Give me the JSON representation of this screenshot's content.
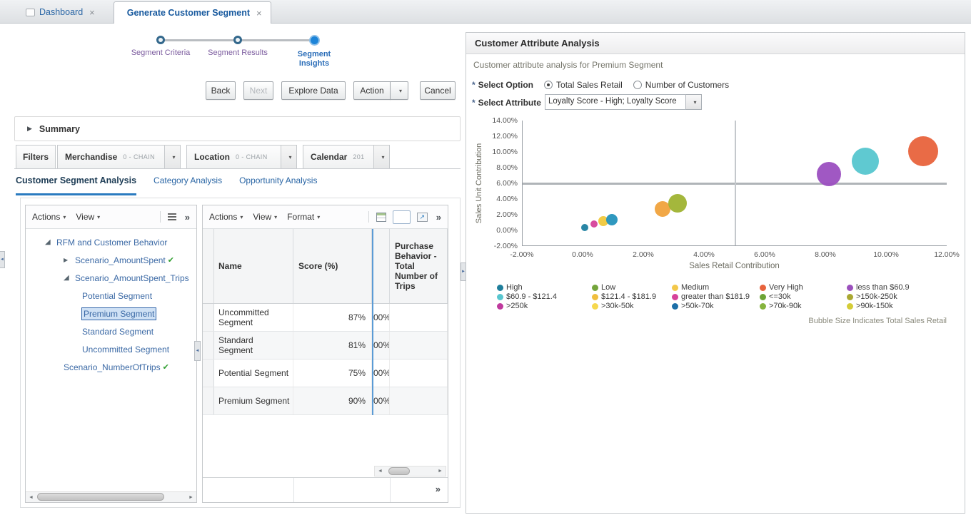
{
  "tabs": [
    {
      "label": "Dashboard",
      "active": false
    },
    {
      "label": "Generate Customer Segment",
      "active": true
    }
  ],
  "train": {
    "steps": [
      {
        "label": "Segment Criteria",
        "state": "visited"
      },
      {
        "label": "Segment Results",
        "state": "visited"
      },
      {
        "label": "Segment Insights",
        "state": "current"
      }
    ]
  },
  "buttons": {
    "back": "Back",
    "next": "Next",
    "explore": "Explore Data",
    "action": "Action",
    "cancel": "Cancel"
  },
  "summary": {
    "title": "Summary"
  },
  "filters": {
    "title": "Filters",
    "groups": [
      {
        "name": "Merchandise",
        "value": "0 - CHAIN"
      },
      {
        "name": "Location",
        "value": "0 - CHAIN"
      },
      {
        "name": "Calendar",
        "value": "201"
      }
    ]
  },
  "analysis_tabs": [
    {
      "label": "Customer Segment Analysis",
      "active": true
    },
    {
      "label": "Category Analysis",
      "active": false
    },
    {
      "label": "Opportunity Analysis",
      "active": false
    }
  ],
  "tree_panel": {
    "menus": [
      "Actions",
      "View"
    ],
    "overflow": "»",
    "items": [
      {
        "label": "RFM and Customer Behavior",
        "level": 0,
        "state": "expanded"
      },
      {
        "label": "Scenario_AmountSpent",
        "level": 1,
        "state": "collapsed",
        "check": true
      },
      {
        "label": "Scenario_AmountSpent_Trips",
        "level": 1,
        "state": "expanded"
      },
      {
        "label": "Potential Segment",
        "level": 2
      },
      {
        "label": "Premium Segment",
        "level": 2,
        "selected": true
      },
      {
        "label": "Standard Segment",
        "level": 2
      },
      {
        "label": "Uncommitted Segment",
        "level": 2
      },
      {
        "label": "Scenario_NumberOfTrips",
        "level": 1,
        "check": true
      }
    ]
  },
  "table_panel": {
    "menus": [
      "Actions",
      "View",
      "Format"
    ],
    "overflow": "»",
    "columns": [
      "Name",
      "Score (%)",
      "",
      "Purchase Behavior - Total Number of Trips"
    ],
    "rows": [
      {
        "name": "Uncommitted Segment",
        "score": "87%",
        "clipped": "00%"
      },
      {
        "name": "Standard Segment",
        "score": "81%",
        "clipped": "00%"
      },
      {
        "name": "Potential Segment",
        "score": "75%",
        "clipped": "00%"
      },
      {
        "name": "Premium Segment",
        "score": "90%",
        "clipped": "00%"
      }
    ]
  },
  "attribute_panel": {
    "title": "Customer Attribute Analysis",
    "subtitle": "Customer attribute analysis for Premium Segment",
    "select_option": {
      "label": "Select Option",
      "required": true,
      "options": [
        {
          "label": "Total Sales Retail",
          "selected": true
        },
        {
          "label": "Number of Customers",
          "selected": false
        }
      ]
    },
    "select_attribute": {
      "label": "Select Attribute",
      "required": true,
      "value": "Loyalty Score - High; Loyalty Score"
    }
  },
  "chart_data": {
    "type": "bubble",
    "xlabel": "Sales Retail Contribution",
    "ylabel": "Sales Unit Contribution",
    "xlim": [
      -2,
      12
    ],
    "ylim": [
      -2,
      14
    ],
    "x_ticks": [
      -2,
      0,
      2,
      4,
      6,
      8,
      10,
      12
    ],
    "y_ticks": [
      14,
      12,
      10,
      8,
      6,
      4,
      2,
      0,
      -2
    ],
    "tick_format": "0.00%",
    "grid": false,
    "reference_lines": {
      "x": 5,
      "y": 6
    },
    "points": [
      {
        "x": 0.05,
        "y": 0.4,
        "r": 5,
        "color": "#1e7fa0"
      },
      {
        "x": 0.35,
        "y": 0.8,
        "r": 5,
        "color": "#d6429a"
      },
      {
        "x": 0.65,
        "y": 1.2,
        "r": 7,
        "color": "#f0c83c"
      },
      {
        "x": 0.95,
        "y": 1.4,
        "r": 8,
        "color": "#2492bc"
      },
      {
        "x": 2.6,
        "y": 2.7,
        "r": 11,
        "color": "#f0a23c"
      },
      {
        "x": 3.1,
        "y": 3.5,
        "r": 13,
        "color": "#9fb332"
      },
      {
        "x": 8.1,
        "y": 7.2,
        "r": 17,
        "color": "#9b4fc0"
      },
      {
        "x": 9.3,
        "y": 8.8,
        "r": 19,
        "color": "#56c6cf"
      },
      {
        "x": 11.2,
        "y": 10.1,
        "r": 21,
        "color": "#e8633c"
      }
    ],
    "legend": [
      {
        "label": "High",
        "color": "#1f7e9b"
      },
      {
        "label": "Low",
        "color": "#74a53c"
      },
      {
        "label": "Medium",
        "color": "#f3c84a"
      },
      {
        "label": "Very High",
        "color": "#e8633c"
      },
      {
        "label": "less than $60.9",
        "color": "#9b50bd"
      },
      {
        "label": "$60.9 - $121.4",
        "color": "#59c6cf"
      },
      {
        "label": "$121.4 - $181.9",
        "color": "#f0be3e"
      },
      {
        "label": "greater than $181.9",
        "color": "#d6429a"
      },
      {
        "label": "<=30k",
        "color": "#6da436"
      },
      {
        "label": ">150k-250k",
        "color": "#aaa832"
      },
      {
        "label": ">250k",
        "color": "#bf3a9e"
      },
      {
        "label": ">30k-50k",
        "color": "#f6d84e"
      },
      {
        "label": ">50k-70k",
        "color": "#1d6fa8"
      },
      {
        "label": ">70k-90k",
        "color": "#86b43e"
      },
      {
        "label": ">90k-150k",
        "color": "#d4cc38"
      }
    ],
    "note": "Bubble Size Indicates Total Sales Retail"
  }
}
